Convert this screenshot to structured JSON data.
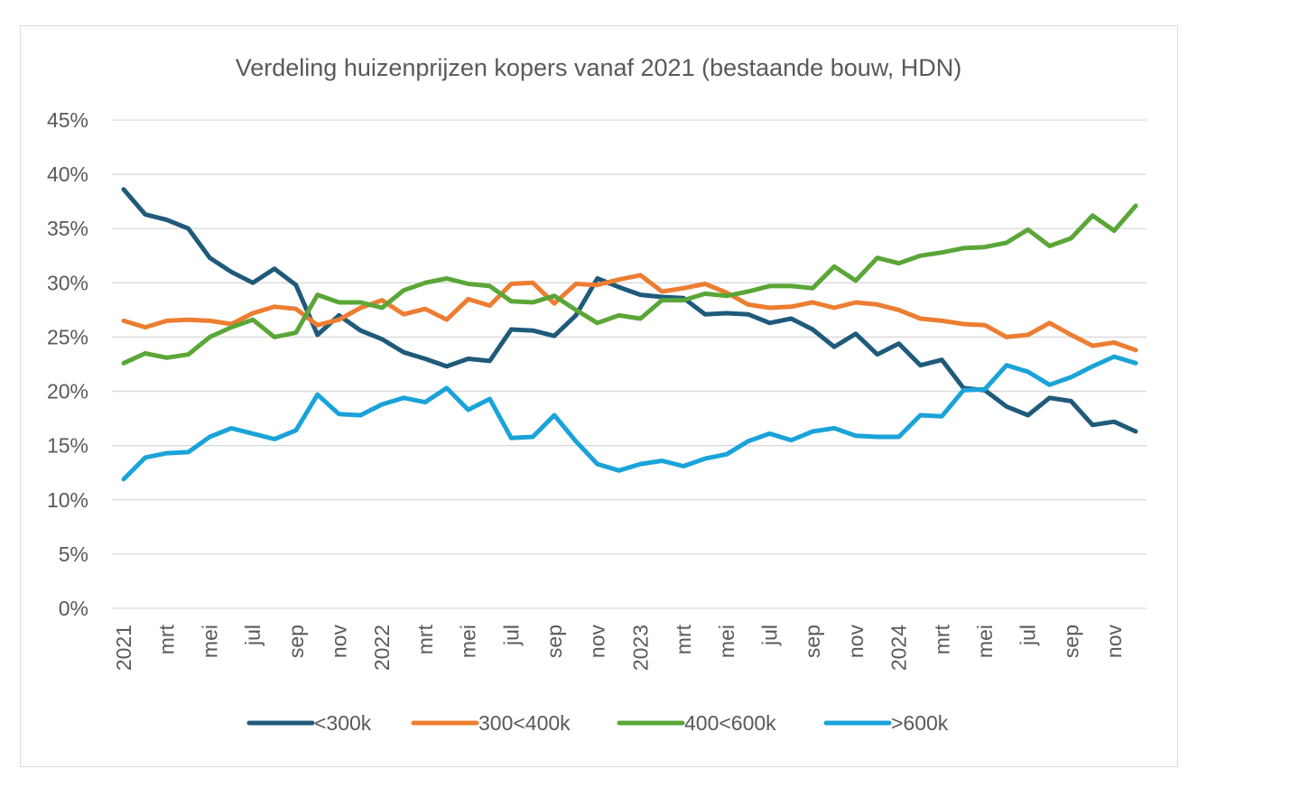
{
  "chart_data": {
    "type": "line",
    "title": "Verdeling huizenprijzen kopers vanaf 2021 (bestaande bouw, HDN)",
    "xlabel": "",
    "ylabel": "",
    "ylim": [
      0,
      45
    ],
    "grid": true,
    "legend_position": "bottom",
    "y_tick_labels": [
      "0%",
      "5%",
      "10%",
      "15%",
      "20%",
      "25%",
      "30%",
      "35%",
      "40%",
      "45%"
    ],
    "x_tick_labels": [
      "2021",
      "mrt",
      "mei",
      "jul",
      "sep",
      "nov",
      "2022",
      "mrt",
      "mei",
      "jul",
      "sep",
      "nov",
      "2023",
      "mrt",
      "mei",
      "jul",
      "sep",
      "nov",
      "2024",
      "mrt",
      "mei",
      "jul",
      "sep",
      "nov"
    ],
    "x": [
      "2021-01",
      "2021-02",
      "2021-03",
      "2021-04",
      "2021-05",
      "2021-06",
      "2021-07",
      "2021-08",
      "2021-09",
      "2021-10",
      "2021-11",
      "2021-12",
      "2022-01",
      "2022-02",
      "2022-03",
      "2022-04",
      "2022-05",
      "2022-06",
      "2022-07",
      "2022-08",
      "2022-09",
      "2022-10",
      "2022-11",
      "2022-12",
      "2023-01",
      "2023-02",
      "2023-03",
      "2023-04",
      "2023-05",
      "2023-06",
      "2023-07",
      "2023-08",
      "2023-09",
      "2023-10",
      "2023-11",
      "2023-12",
      "2024-01",
      "2024-02",
      "2024-03",
      "2024-04",
      "2024-05",
      "2024-06",
      "2024-07",
      "2024-08",
      "2024-09",
      "2024-10",
      "2024-11",
      "2024-12"
    ],
    "series": [
      {
        "name": "<300k",
        "color": "#1f5a7a",
        "values": [
          38.6,
          36.3,
          35.8,
          35.0,
          32.3,
          31.0,
          30.0,
          31.3,
          29.8,
          25.2,
          27.0,
          25.6,
          24.8,
          23.6,
          23.0,
          22.3,
          23.0,
          22.8,
          25.7,
          25.6,
          25.1,
          27.0,
          30.4,
          29.6,
          28.9,
          28.7,
          28.6,
          27.1,
          27.2,
          27.1,
          26.3,
          26.7,
          25.7,
          24.1,
          25.3,
          23.4,
          24.4,
          22.4,
          22.9,
          20.3,
          20.1,
          18.6,
          17.8,
          19.4,
          19.1,
          16.9,
          17.2,
          16.3
        ]
      },
      {
        "name": "300<400k",
        "color": "#ed7d31",
        "values": [
          26.5,
          25.9,
          26.5,
          26.6,
          26.5,
          26.2,
          27.2,
          27.8,
          27.6,
          26.1,
          26.6,
          27.7,
          28.4,
          27.1,
          27.6,
          26.6,
          28.5,
          27.9,
          29.9,
          30.0,
          28.1,
          29.9,
          29.8,
          30.3,
          30.7,
          29.2,
          29.5,
          29.9,
          29.1,
          28.0,
          27.7,
          27.8,
          28.2,
          27.7,
          28.2,
          28.0,
          27.5,
          26.7,
          26.5,
          26.2,
          26.1,
          25.0,
          25.2,
          26.3,
          25.2,
          24.2,
          24.5,
          23.8
        ]
      },
      {
        "name": "400<600k",
        "color": "#5aa637",
        "values": [
          22.6,
          23.5,
          23.1,
          23.4,
          25.0,
          25.9,
          26.6,
          25.0,
          25.4,
          28.9,
          28.2,
          28.2,
          27.7,
          29.3,
          30.0,
          30.4,
          29.9,
          29.7,
          28.3,
          28.2,
          28.8,
          27.5,
          26.3,
          27.0,
          26.7,
          28.4,
          28.4,
          29.0,
          28.8,
          29.2,
          29.7,
          29.7,
          29.5,
          31.5,
          30.2,
          32.3,
          31.8,
          32.5,
          32.8,
          33.2,
          33.3,
          33.7,
          34.9,
          33.4,
          34.1,
          36.2,
          34.8,
          37.1
        ]
      },
      {
        "name": ">600k",
        "color": "#1aa3d9",
        "values": [
          11.9,
          13.9,
          14.3,
          14.4,
          15.8,
          16.6,
          16.1,
          15.6,
          16.4,
          19.7,
          17.9,
          17.8,
          18.8,
          19.4,
          19.0,
          20.3,
          18.3,
          19.3,
          15.7,
          15.8,
          17.8,
          15.4,
          13.3,
          12.7,
          13.3,
          13.6,
          13.1,
          13.8,
          14.2,
          15.4,
          16.1,
          15.5,
          16.3,
          16.6,
          15.9,
          15.8,
          15.8,
          17.8,
          17.7,
          20.1,
          20.2,
          22.4,
          21.8,
          20.6,
          21.3,
          22.3,
          23.2,
          22.6
        ]
      }
    ]
  }
}
